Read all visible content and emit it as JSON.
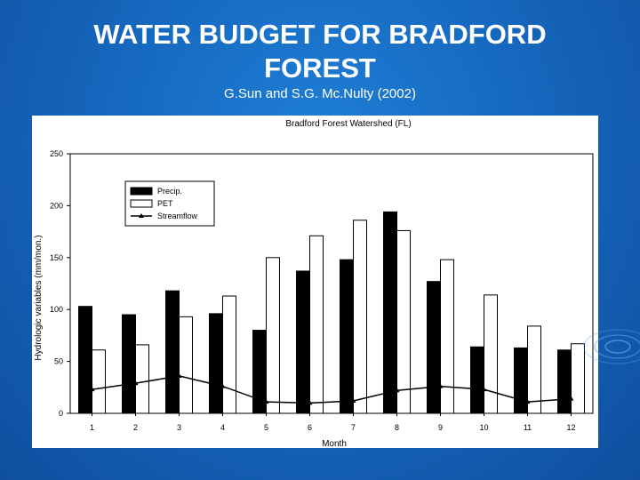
{
  "slide": {
    "title_line1": "WATER BUDGET FOR BRADFORD",
    "title_line2": "FOREST",
    "subtitle": "G.Sun and S.G. Mc.Nulty (2002)"
  },
  "colors": {
    "background": "#1668bf",
    "precip": "#000000",
    "pet": "#ffffff",
    "streamflow": "#000000"
  },
  "chart_data": {
    "type": "bar",
    "title": "Bradford Forest Watershed (FL)",
    "xlabel": "Month",
    "ylabel": "Hydrologic variables (mm/mon.)",
    "categories": [
      "1",
      "2",
      "3",
      "4",
      "5",
      "6",
      "7",
      "8",
      "9",
      "10",
      "11",
      "12"
    ],
    "ylim": [
      0,
      250
    ],
    "yticks": [
      0,
      50,
      100,
      150,
      200,
      250
    ],
    "legend_position": "top-left",
    "grid": false,
    "series": [
      {
        "name": "Precip.",
        "type": "bar",
        "values": [
          103,
          95,
          118,
          96,
          80,
          137,
          148,
          194,
          127,
          64,
          63,
          61
        ]
      },
      {
        "name": "PET",
        "type": "bar",
        "values": [
          61,
          66,
          93,
          113,
          150,
          171,
          186,
          176,
          148,
          114,
          84,
          67
        ]
      },
      {
        "name": "Streamflow",
        "type": "line",
        "values": [
          23,
          29,
          36,
          26,
          11,
          10,
          12,
          22,
          26,
          23,
          11,
          14
        ]
      }
    ]
  }
}
